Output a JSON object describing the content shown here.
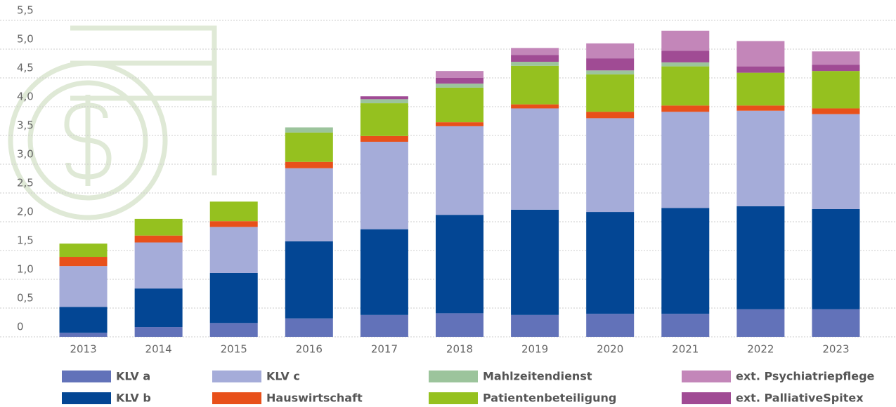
{
  "chart_data": {
    "type": "stacked-bar",
    "categories": [
      "2013",
      "2014",
      "2015",
      "2016",
      "2017",
      "2018",
      "2019",
      "2020",
      "2021",
      "2022",
      "2023"
    ],
    "series": [
      {
        "name": "KLV a",
        "color": "#6272b9",
        "values": [
          0.07,
          0.17,
          0.24,
          0.32,
          0.38,
          0.41,
          0.38,
          0.4,
          0.4,
          0.48,
          0.48
        ]
      },
      {
        "name": "KLV b",
        "color": "#034694",
        "values": [
          0.45,
          0.67,
          0.87,
          1.34,
          1.49,
          1.71,
          1.83,
          1.77,
          1.84,
          1.79,
          1.74
        ]
      },
      {
        "name": "KLV c",
        "color": "#a5acd9",
        "values": [
          0.71,
          0.8,
          0.8,
          1.27,
          1.52,
          1.54,
          1.76,
          1.63,
          1.67,
          1.66,
          1.65
        ]
      },
      {
        "name": "Hauswirtschaft",
        "color": "#e8501a",
        "values": [
          0.16,
          0.12,
          0.1,
          0.11,
          0.1,
          0.07,
          0.07,
          0.11,
          0.11,
          0.09,
          0.1
        ]
      },
      {
        "name": "Patientenbeteiligung",
        "color": "#95c11f",
        "values": [
          0.23,
          0.29,
          0.34,
          0.51,
          0.57,
          0.6,
          0.67,
          0.65,
          0.68,
          0.57,
          0.65
        ]
      },
      {
        "name": "Mahlzeitendienst",
        "color": "#9cc49c",
        "values": [
          0,
          0,
          0,
          0.09,
          0.07,
          0.07,
          0.07,
          0.07,
          0.07,
          0,
          0
        ]
      },
      {
        "name": "ext. PalliativeSpitex",
        "color": "#a04b94",
        "values": [
          0,
          0,
          0,
          0,
          0.05,
          0.1,
          0.12,
          0.21,
          0.2,
          0.11,
          0.11
        ]
      },
      {
        "name": "ext. Psychiatriepflege",
        "color": "#c386b9",
        "values": [
          0,
          0,
          0,
          0,
          0,
          0.12,
          0.12,
          0.26,
          0.35,
          0.44,
          0.23
        ]
      }
    ],
    "ylim": [
      0,
      5.5
    ],
    "yticks": [
      0,
      {
        "value": 0.5,
        "label": "0,5"
      },
      {
        "value": 1,
        "label": "1,0"
      },
      {
        "value": 1.5,
        "label": "1,5"
      },
      {
        "value": 2,
        "label": "2,0"
      },
      {
        "value": 2.5,
        "label": "2,5"
      },
      {
        "value": 3,
        "label": "3,0"
      },
      {
        "value": 3.5,
        "label": "3,5"
      },
      {
        "value": 4,
        "label": "4,0"
      },
      {
        "value": 4.5,
        "label": "4,5"
      },
      {
        "value": 5,
        "label": "5,0"
      },
      {
        "value": 5.5,
        "label": "5,5"
      }
    ],
    "grid": true
  }
}
